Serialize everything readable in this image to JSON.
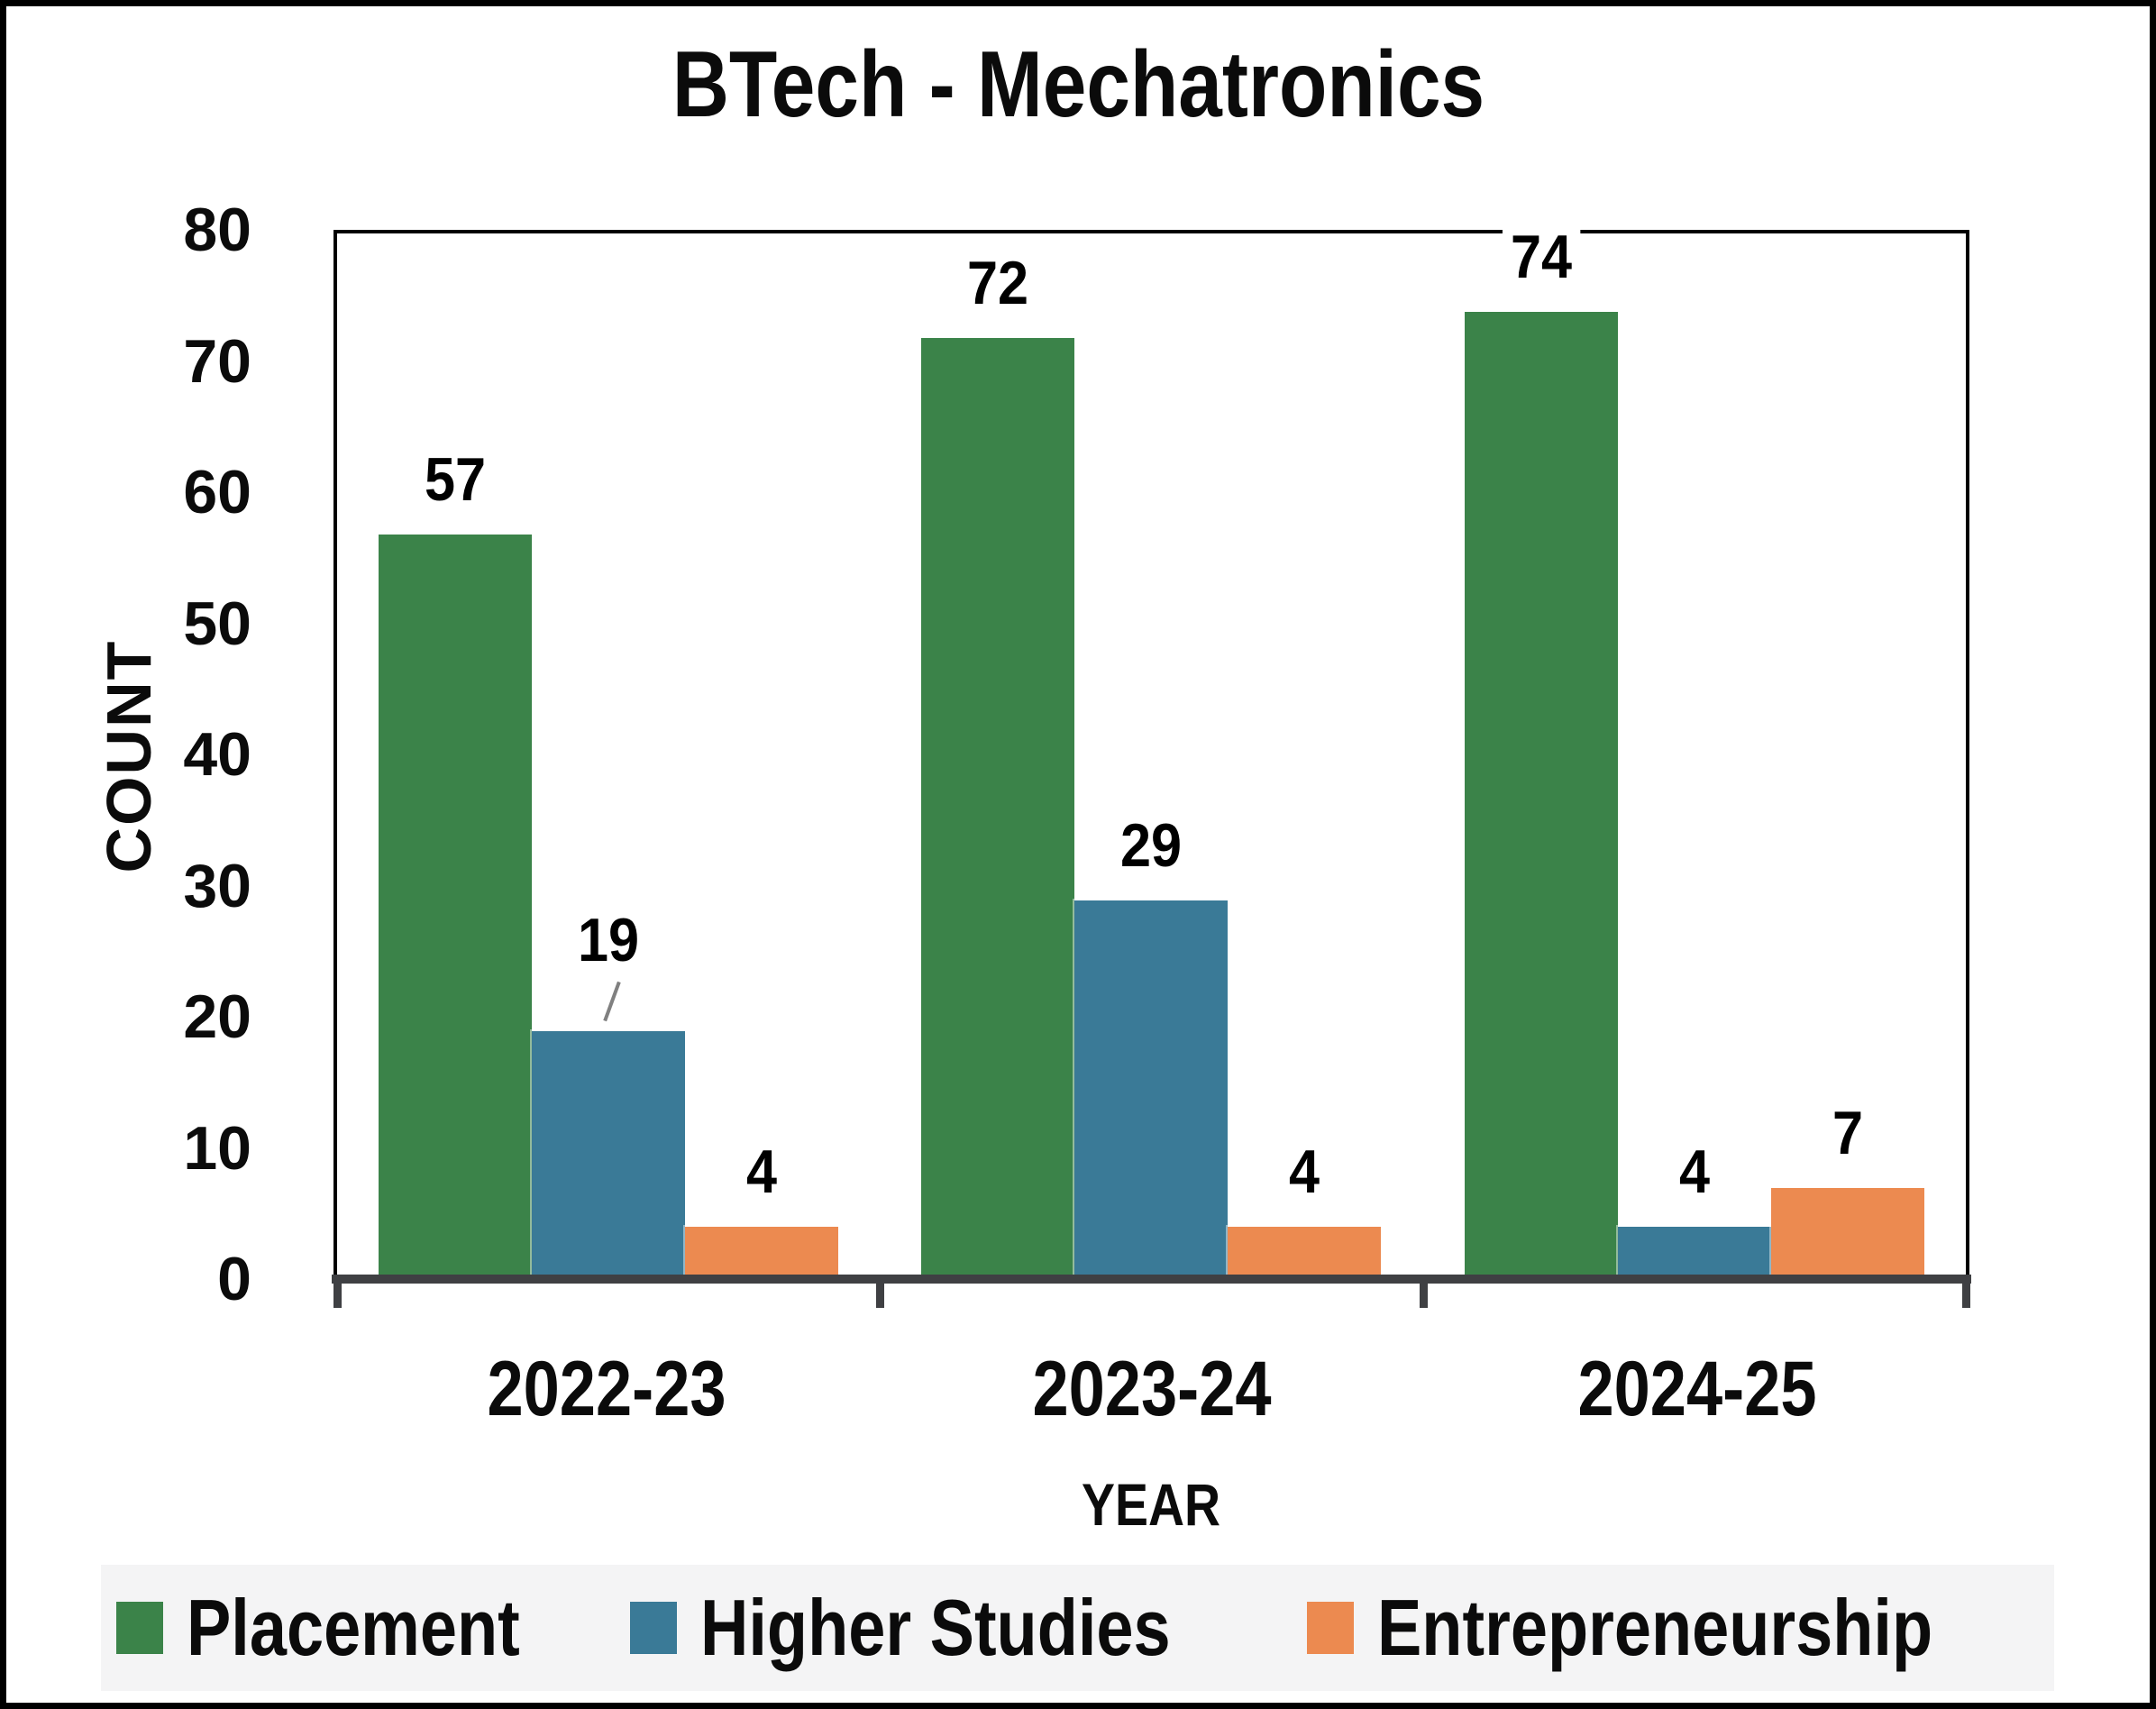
{
  "title": "BTech - Mechatronics",
  "chart_data": {
    "type": "bar",
    "title": "BTech - Mechatronics",
    "xlabel": "YEAR",
    "ylabel": "COUNT",
    "ylim": [
      0,
      80
    ],
    "yticks": [
      0,
      10,
      20,
      30,
      40,
      50,
      60,
      70,
      80
    ],
    "categories": [
      "2022-23",
      "2023-24",
      "2024-25"
    ],
    "series": [
      {
        "name": "Placement",
        "color": "#3B8349",
        "values": [
          57,
          72,
          74
        ]
      },
      {
        "name": "Higher Studies",
        "color": "#3A7A97",
        "values": [
          19,
          29,
          4
        ]
      },
      {
        "name": "Entrepreneurship",
        "color": "#EC8A50",
        "values": [
          4,
          4,
          7
        ]
      }
    ],
    "data_labels": true,
    "leader_line": {
      "series": "Higher Studies",
      "category": "2022-23"
    },
    "legend_position": "bottom",
    "grid": false
  },
  "colors": {
    "axis": "#3F4043",
    "plot_border": "#000000",
    "legend_bg": "#F4F4F5",
    "leader_line": "#808080",
    "label_text": "#000000"
  }
}
